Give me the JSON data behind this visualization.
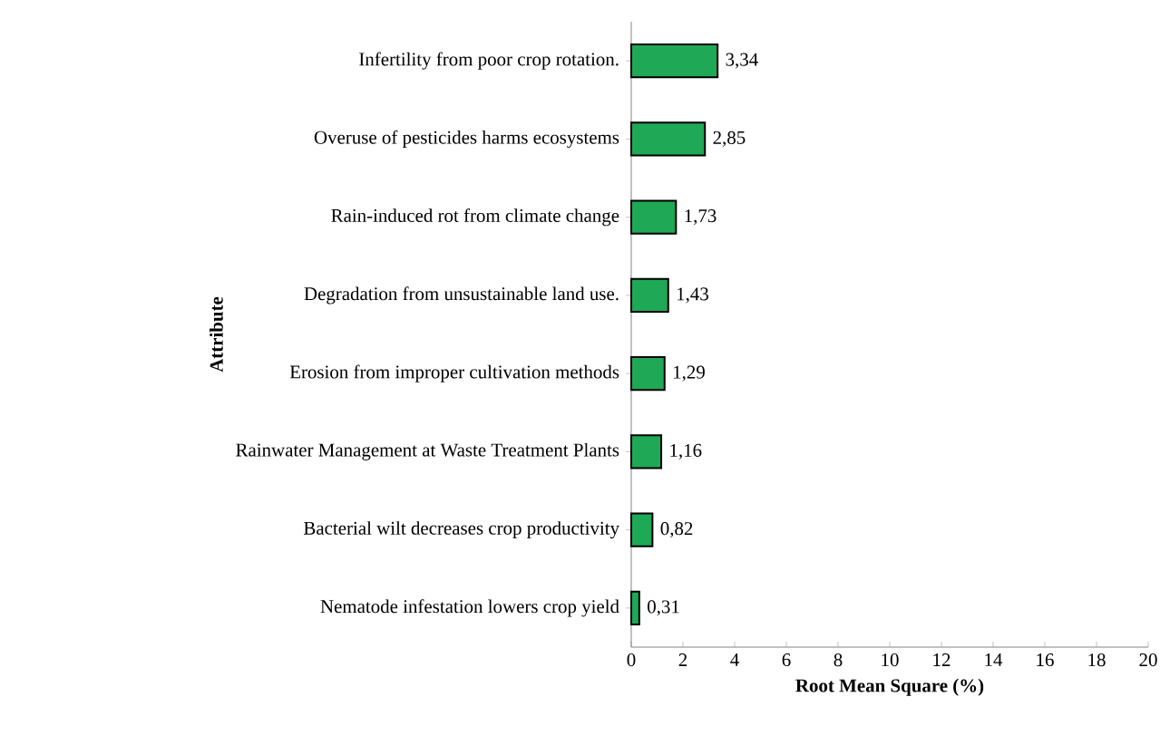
{
  "chart_data": {
    "type": "bar",
    "orientation": "horizontal",
    "xlabel": "Root Mean Square (%)",
    "ylabel": "Attribute",
    "categories": [
      "Infertility from poor crop rotation.",
      "Overuse of pesticides harms ecosystems",
      "Rain-induced rot from climate change",
      "Degradation from unsustainable land use.",
      "Erosion from improper cultivation methods",
      "Rainwater Management at Waste Treatment Plants",
      "Bacterial wilt decreases crop productivity",
      "Nematode infestation lowers crop yield"
    ],
    "values": [
      3.34,
      2.85,
      1.73,
      1.43,
      1.29,
      1.16,
      0.82,
      0.31
    ],
    "value_labels": [
      "3,34",
      "2,85",
      "1,73",
      "1,43",
      "1,29",
      "1,16",
      "0,82",
      "0,31"
    ],
    "color": "#1fa855",
    "xlim": [
      0,
      20
    ],
    "xticks": [
      0,
      2,
      4,
      6,
      8,
      10,
      12,
      14,
      16,
      18,
      20
    ],
    "grid": false
  }
}
